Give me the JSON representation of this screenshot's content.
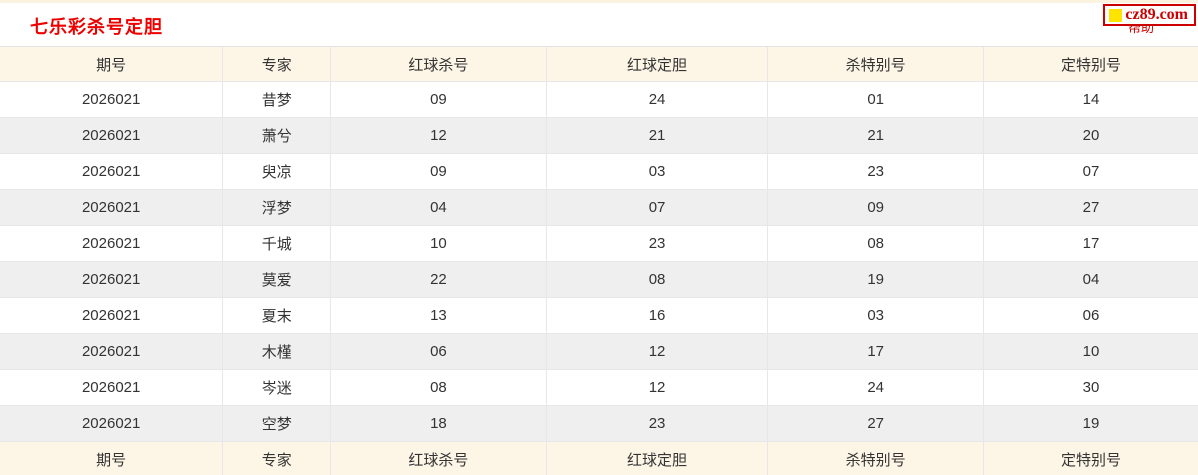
{
  "page": {
    "title": "七乐彩杀号定胆",
    "help_link_label": "帮助",
    "logo": {
      "text": "cz89.com",
      "icon": "yellow-square-icon",
      "border_color": "#cc0000",
      "icon_color": "#ffe400",
      "text_color": "#cc0000"
    },
    "title_color": "#ee0000"
  },
  "table": {
    "columns": [
      "期号",
      "专家",
      "红球杀号",
      "红球定胆",
      "杀特别号",
      "定特别号"
    ],
    "rows": [
      [
        "2026021",
        "昔梦",
        "09",
        "24",
        "01",
        "14"
      ],
      [
        "2026021",
        "萧兮",
        "12",
        "21",
        "21",
        "20"
      ],
      [
        "2026021",
        "臾凉",
        "09",
        "03",
        "23",
        "07"
      ],
      [
        "2026021",
        "浮梦",
        "04",
        "07",
        "09",
        "27"
      ],
      [
        "2026021",
        "千城",
        "10",
        "23",
        "08",
        "17"
      ],
      [
        "2026021",
        "莫爱",
        "22",
        "08",
        "19",
        "04"
      ],
      [
        "2026021",
        "夏末",
        "13",
        "16",
        "03",
        "06"
      ],
      [
        "2026021",
        "木槿",
        "06",
        "12",
        "17",
        "10"
      ],
      [
        "2026021",
        "岑迷",
        "08",
        "12",
        "24",
        "30"
      ],
      [
        "2026021",
        "空梦",
        "18",
        "23",
        "27",
        "19"
      ]
    ],
    "colors": {
      "header_bg": "#fdf6e7",
      "row_alt_bg": "#efefef",
      "row_bg": "#ffffff",
      "border": "#e7e7e7",
      "text": "#333333"
    }
  }
}
